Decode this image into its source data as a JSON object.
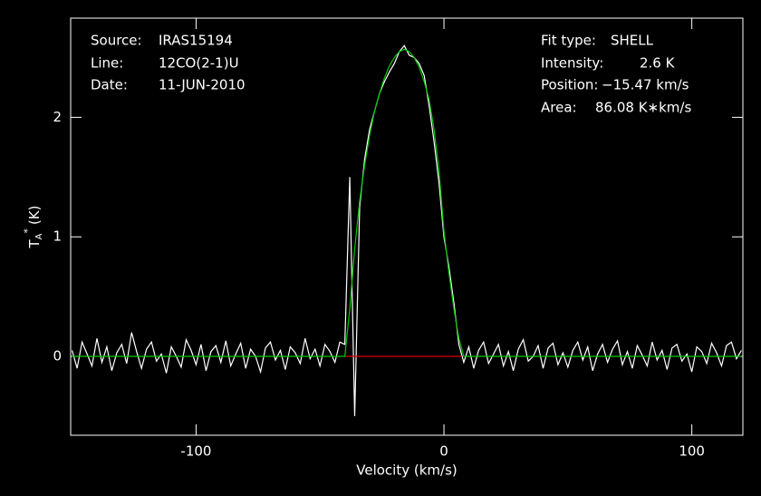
{
  "chart_data": {
    "type": "line",
    "xlabel": "Velocity (km/s)",
    "ylabel": [
      "T",
      "A",
      "*",
      "(K)"
    ],
    "xlim": [
      -150.6,
      120.6
    ],
    "ylim": [
      -0.66,
      2.83
    ],
    "xticks": [
      -100,
      0,
      100
    ],
    "yticks": [
      0,
      1,
      2
    ],
    "annotations_left": [
      {
        "label": "Source:",
        "value": "IRAS15194"
      },
      {
        "label": "Line:",
        "value": "12CO(2-1)U"
      },
      {
        "label": "Date:",
        "value": "11-JUN-2010"
      }
    ],
    "annotations_right": [
      {
        "label": "Fit type:",
        "value": "SHELL"
      },
      {
        "label": "Intensity:",
        "value": "2.6 K"
      },
      {
        "label": "Position:",
        "value": "−15.47 km/s"
      },
      {
        "label": "Area:",
        "value": "86.08 K∗km/s"
      }
    ],
    "series": [
      {
        "color": "#ffffff",
        "x": [
          -150,
          -148,
          -146,
          -144,
          -142,
          -140,
          -138,
          -136,
          -134,
          -132,
          -130,
          -128,
          -126,
          -124,
          -122,
          -120,
          -118,
          -116,
          -114,
          -112,
          -110,
          -108,
          -106,
          -104,
          -102,
          -100,
          -98,
          -96,
          -94,
          -92,
          -90,
          -88,
          -86,
          -84,
          -82,
          -80,
          -78,
          -76,
          -74,
          -72,
          -70,
          -68,
          -66,
          -64,
          -62,
          -60,
          -58,
          -56,
          -54,
          -52,
          -50,
          -48,
          -46,
          -44,
          -42,
          -40,
          -38,
          -36,
          -34,
          -32,
          -30,
          -28,
          -26,
          -24,
          -22,
          -20,
          -18,
          -16,
          -14,
          -12,
          -10,
          -8,
          -6,
          -4,
          -2,
          0,
          2,
          4,
          6,
          8,
          10,
          12,
          14,
          16,
          18,
          20,
          22,
          24,
          26,
          28,
          30,
          32,
          34,
          36,
          38,
          40,
          42,
          44,
          46,
          48,
          50,
          52,
          54,
          56,
          58,
          60,
          62,
          64,
          66,
          68,
          70,
          72,
          74,
          76,
          78,
          80,
          82,
          84,
          86,
          88,
          90,
          92,
          94,
          96,
          98,
          100,
          102,
          104,
          106,
          108,
          110,
          112,
          114,
          116,
          118,
          120
        ],
        "values": [
          0.05,
          -0.1,
          0.12,
          0.02,
          -0.08,
          0.15,
          -0.05,
          0.08,
          -0.12,
          0.03,
          0.1,
          -0.06,
          0.2,
          0.04,
          -0.1,
          0.06,
          0.12,
          -0.04,
          0.02,
          -0.14,
          0.08,
          0.0,
          -0.09,
          0.14,
          0.05,
          -0.07,
          0.1,
          -0.12,
          0.04,
          0.09,
          -0.05,
          0.13,
          -0.08,
          0.02,
          0.11,
          -0.1,
          0.06,
          0.0,
          -0.13,
          0.07,
          0.12,
          -0.03,
          0.05,
          -0.11,
          0.08,
          0.03,
          -0.06,
          0.15,
          -0.02,
          0.06,
          -0.08,
          0.1,
          0.04,
          -0.05,
          0.12,
          0.1,
          1.5,
          -0.5,
          1.25,
          1.65,
          1.9,
          2.05,
          2.2,
          2.3,
          2.38,
          2.45,
          2.55,
          2.6,
          2.52,
          2.5,
          2.45,
          2.35,
          2.1,
          1.8,
          1.45,
          1.0,
          0.75,
          0.45,
          0.1,
          -0.05,
          0.08,
          -0.1,
          0.05,
          0.12,
          -0.06,
          0.02,
          0.1,
          -0.08,
          0.04,
          -0.12,
          0.06,
          0.14,
          -0.04,
          0.0,
          0.09,
          -0.1,
          0.07,
          0.11,
          -0.07,
          0.03,
          -0.09,
          0.05,
          0.12,
          -0.03,
          0.08,
          -0.12,
          0.02,
          0.1,
          -0.05,
          0.06,
          0.13,
          -0.07,
          0.04,
          -0.1,
          0.09,
          0.01,
          -0.08,
          0.12,
          -0.03,
          0.05,
          -0.11,
          0.07,
          0.1,
          -0.04,
          0.02,
          -0.13,
          0.08,
          0.04,
          -0.06,
          0.11,
          0.03,
          -0.08,
          0.09,
          0.12,
          -0.02,
          0.05
        ]
      },
      {
        "color": "#00c800",
        "x": [
          -150,
          -40,
          -38,
          -36,
          -34,
          -32,
          -30,
          -28,
          -26,
          -24,
          -22,
          -20,
          -18,
          -16,
          -14,
          -12,
          -10,
          -8,
          -6,
          -4,
          -2,
          0,
          2,
          4,
          6,
          8,
          120
        ],
        "values": [
          0,
          0,
          0.4,
          0.9,
          1.3,
          1.6,
          1.85,
          2.05,
          2.2,
          2.33,
          2.43,
          2.5,
          2.55,
          2.57,
          2.55,
          2.5,
          2.42,
          2.3,
          2.15,
          1.9,
          1.55,
          1.05,
          0.7,
          0.4,
          0.15,
          0,
          0
        ]
      },
      {
        "color": "#e00000",
        "x": [
          -40.2,
          7.3
        ],
        "values": [
          0,
          0
        ]
      }
    ]
  }
}
